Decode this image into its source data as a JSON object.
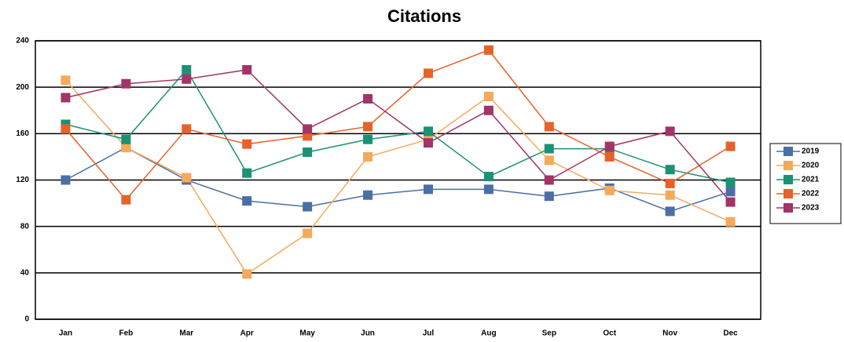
{
  "chart_data": {
    "type": "line",
    "title": "Citations",
    "categories": [
      "Jan",
      "Feb",
      "Mar",
      "Apr",
      "May",
      "Jun",
      "Jul",
      "Aug",
      "Sep",
      "Oct",
      "Nov",
      "Dec"
    ],
    "series": [
      {
        "name": "2019",
        "color": "#4a6fa5",
        "values": [
          120,
          148,
          120,
          102,
          97,
          107,
          112,
          112,
          106,
          113,
          93,
          110
        ]
      },
      {
        "name": "2020",
        "color": "#f5a95b",
        "values": [
          206,
          148,
          122,
          39,
          74,
          140,
          155,
          192,
          137,
          111,
          107,
          84
        ]
      },
      {
        "name": "2021",
        "color": "#1a9273",
        "values": [
          168,
          155,
          215,
          126,
          144,
          155,
          162,
          123,
          147,
          147,
          129,
          118
        ]
      },
      {
        "name": "2022",
        "color": "#e5622a",
        "values": [
          164,
          103,
          164,
          151,
          158,
          166,
          212,
          232,
          166,
          140,
          117,
          149
        ]
      },
      {
        "name": "2023",
        "color": "#a23467",
        "values": [
          191,
          203,
          207,
          215,
          164,
          190,
          152,
          180,
          120,
          149,
          162,
          101
        ]
      }
    ],
    "ylim": [
      0,
      240
    ],
    "yticks": [
      0,
      40,
      80,
      120,
      160,
      200,
      240
    ],
    "grid": true,
    "legend": "right"
  }
}
